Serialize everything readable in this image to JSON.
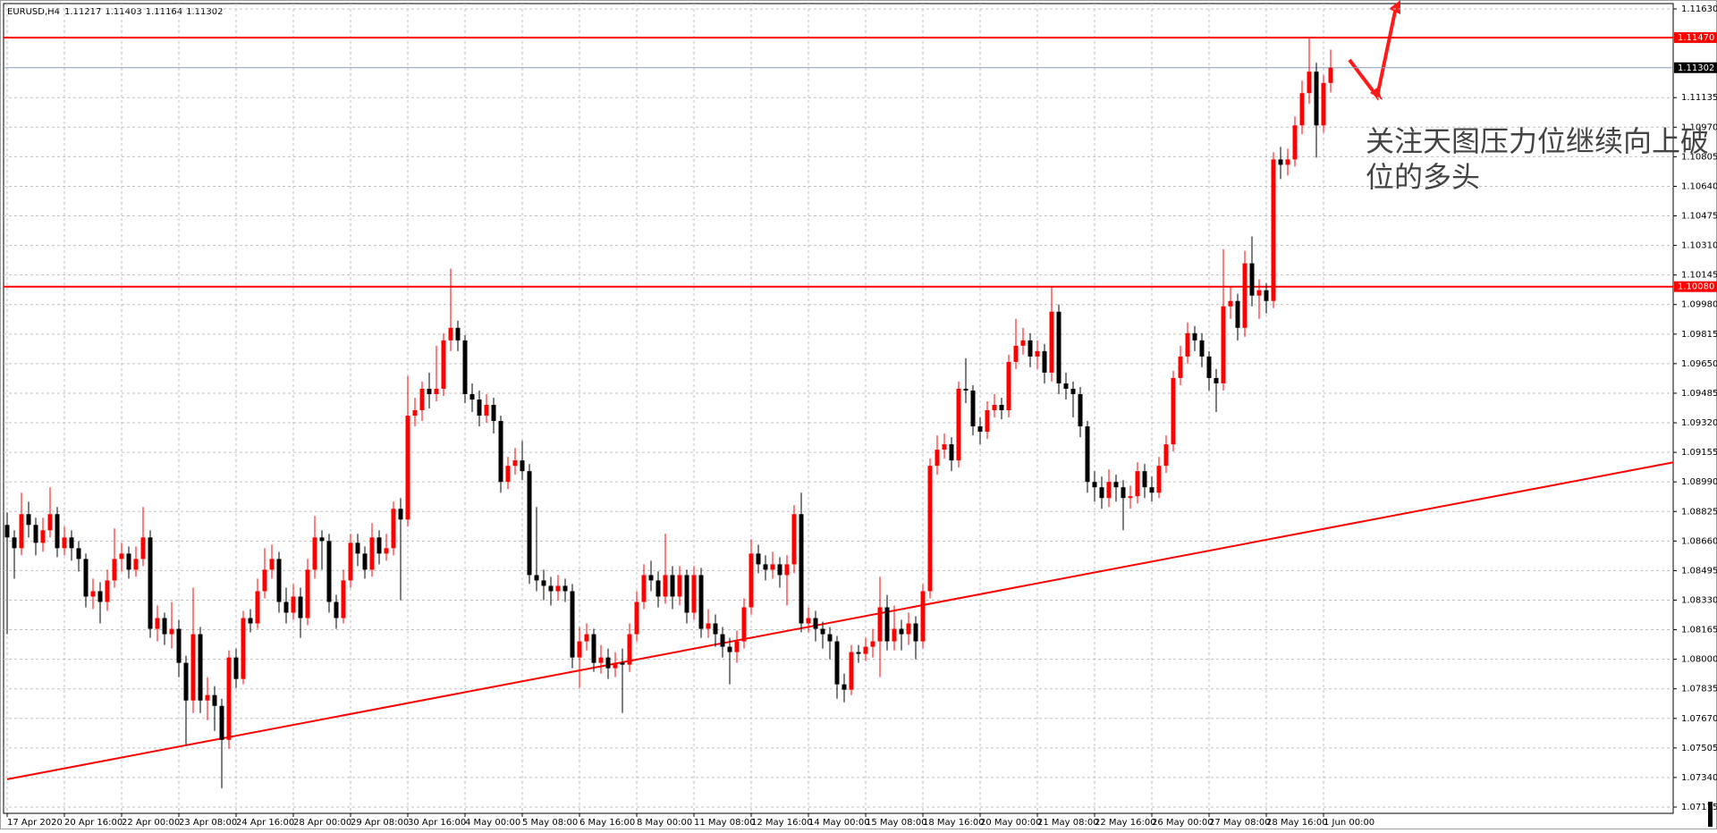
{
  "chart_data": {
    "type": "candlestick",
    "symbol": "EURUSD,H4",
    "annotation": "关注天图压力位继续向上破位的多头",
    "up_color": "#ff0000",
    "down_color": "#000000",
    "grid": true,
    "grid_color": "#c0c0c0",
    "ylim": [
      1.0714,
      1.1166
    ],
    "yticks": [
      {
        "value": 1.1163,
        "label": "1.11630"
      },
      {
        "value": 1.11135,
        "label": "1.11135"
      },
      {
        "value": 1.1097,
        "label": "1.10970"
      },
      {
        "value": 1.10805,
        "label": "1.10805"
      },
      {
        "value": 1.1064,
        "label": "1.10640"
      },
      {
        "value": 1.10475,
        "label": "1.10475"
      },
      {
        "value": 1.1031,
        "label": "1.10310"
      },
      {
        "value": 1.10145,
        "label": "1.10145"
      },
      {
        "value": 1.0998,
        "label": "1.09980"
      },
      {
        "value": 1.09815,
        "label": "1.09815"
      },
      {
        "value": 1.0965,
        "label": "1.09650"
      },
      {
        "value": 1.09485,
        "label": "1.09485"
      },
      {
        "value": 1.0932,
        "label": "1.09320"
      },
      {
        "value": 1.09155,
        "label": "1.09155"
      },
      {
        "value": 1.0899,
        "label": "1.08990"
      },
      {
        "value": 1.08825,
        "label": "1.08825"
      },
      {
        "value": 1.0866,
        "label": "1.08660"
      },
      {
        "value": 1.08495,
        "label": "1.08495"
      },
      {
        "value": 1.0833,
        "label": "1.08330"
      },
      {
        "value": 1.08165,
        "label": "1.08165"
      },
      {
        "value": 1.08,
        "label": "1.08000"
      },
      {
        "value": 1.07835,
        "label": "1.07835"
      },
      {
        "value": 1.0767,
        "label": "1.07670"
      },
      {
        "value": 1.07505,
        "label": "1.07505"
      },
      {
        "value": 1.0734,
        "label": "1.07340"
      },
      {
        "value": 1.07175,
        "label": "1.07175"
      }
    ],
    "levels": [
      {
        "value": 1.1147,
        "label": "1.11470"
      },
      {
        "value": 1.1008,
        "label": "1.10080"
      }
    ],
    "level_color": "#ff0000",
    "current_price_color": "#8a9bbd",
    "trendline": {
      "from": {
        "x": 0,
        "price": 1.0733
      },
      "to": {
        "x": 233,
        "price": 1.091
      },
      "color": "#ff0000"
    },
    "categories": [
      "17 Apr 2020",
      null,
      null,
      null,
      null,
      null,
      null,
      null,
      "20 Apr 16:00",
      null,
      null,
      null,
      null,
      null,
      null,
      null,
      "22 Apr 00:00",
      null,
      null,
      null,
      null,
      null,
      null,
      null,
      "23 Apr 08:00",
      null,
      null,
      null,
      null,
      null,
      null,
      null,
      "24 Apr 16:00",
      null,
      null,
      null,
      null,
      null,
      null,
      null,
      "28 Apr 00:00",
      null,
      null,
      null,
      null,
      null,
      null,
      null,
      "29 Apr 08:00",
      null,
      null,
      null,
      null,
      null,
      null,
      null,
      "30 Apr 16:00",
      null,
      null,
      null,
      null,
      null,
      null,
      null,
      "4 May 00:00",
      null,
      null,
      null,
      null,
      null,
      null,
      null,
      "5 May 08:00",
      null,
      null,
      null,
      null,
      null,
      null,
      null,
      "6 May 16:00",
      null,
      null,
      null,
      null,
      null,
      null,
      null,
      "8 May 00:00",
      null,
      null,
      null,
      null,
      null,
      null,
      null,
      "11 May 08:00",
      null,
      null,
      null,
      null,
      null,
      null,
      null,
      "12 May 16:00",
      null,
      null,
      null,
      null,
      null,
      null,
      null,
      "14 May 00:00",
      null,
      null,
      null,
      null,
      null,
      null,
      null,
      "15 May 08:00",
      null,
      null,
      null,
      null,
      null,
      null,
      null,
      "18 May 16:00",
      null,
      null,
      null,
      null,
      null,
      null,
      null,
      "20 May 00:00",
      null,
      null,
      null,
      null,
      null,
      null,
      null,
      "21 May 08:00",
      null,
      null,
      null,
      null,
      null,
      null,
      null,
      "22 May 16:00",
      null,
      null,
      null,
      null,
      null,
      null,
      null,
      "26 May 00:00",
      null,
      null,
      null,
      null,
      null,
      null,
      null,
      "27 May 08:00",
      null,
      null,
      null,
      null,
      null,
      null,
      null,
      "28 May 16:00",
      null,
      null,
      null,
      null,
      null,
      null,
      null,
      "1 Jun 00:00",
      null
    ],
    "ohlc": [
      [
        1.0875,
        1.0882,
        1.0814,
        1.0868
      ],
      [
        1.0868,
        1.0872,
        1.0845,
        1.0862
      ],
      [
        1.0862,
        1.0893,
        1.0858,
        1.0881
      ],
      [
        1.0881,
        1.0888,
        1.0868,
        1.0875
      ],
      [
        1.0875,
        1.0879,
        1.0858,
        1.0865
      ],
      [
        1.0865,
        1.0879,
        1.086,
        1.0872
      ],
      [
        1.0872,
        1.0896,
        1.0868,
        1.0881
      ],
      [
        1.0881,
        1.0885,
        1.0857,
        1.0862
      ],
      [
        1.0862,
        1.0874,
        1.0858,
        1.0868
      ],
      [
        1.0868,
        1.0872,
        1.0855,
        1.0862
      ],
      [
        1.0862,
        1.0866,
        1.0849,
        1.0856
      ],
      [
        1.0856,
        1.0859,
        1.0829,
        1.0835
      ],
      [
        1.0835,
        1.0845,
        1.0828,
        1.0838
      ],
      [
        1.0838,
        1.0843,
        1.082,
        1.0832
      ],
      [
        1.0832,
        1.085,
        1.0827,
        1.0844
      ],
      [
        1.0844,
        1.0873,
        1.084,
        1.0856
      ],
      [
        1.0856,
        1.0865,
        1.0849,
        1.0859
      ],
      [
        1.0859,
        1.0863,
        1.0845,
        1.085
      ],
      [
        1.085,
        1.0863,
        1.0846,
        1.0856
      ],
      [
        1.0856,
        1.0885,
        1.0852,
        1.0868
      ],
      [
        1.0868,
        1.0872,
        1.0812,
        1.0817
      ],
      [
        1.0817,
        1.083,
        1.081,
        1.0823
      ],
      [
        1.0823,
        1.0826,
        1.0808,
        1.0814
      ],
      [
        1.0814,
        1.0832,
        1.0806,
        1.0817
      ],
      [
        1.0817,
        1.0822,
        1.079,
        1.0798
      ],
      [
        1.0798,
        1.0802,
        1.0752,
        1.0777
      ],
      [
        1.0777,
        1.084,
        1.077,
        1.0814
      ],
      [
        1.0814,
        1.0818,
        1.077,
        1.0777
      ],
      [
        1.0777,
        1.079,
        1.0766,
        1.078
      ],
      [
        1.078,
        1.0785,
        1.076,
        1.0774
      ],
      [
        1.0774,
        1.0778,
        1.0728,
        1.0755
      ],
      [
        1.0755,
        1.0805,
        1.075,
        1.0801
      ],
      [
        1.0801,
        1.0806,
        1.0784,
        1.0789
      ],
      [
        1.0789,
        1.0827,
        1.0786,
        1.0823
      ],
      [
        1.0823,
        1.0828,
        1.0815,
        1.082
      ],
      [
        1.082,
        1.0845,
        1.0817,
        1.0838
      ],
      [
        1.0838,
        1.0862,
        1.0834,
        1.085
      ],
      [
        1.085,
        1.0864,
        1.0845,
        1.0856
      ],
      [
        1.0856,
        1.086,
        1.0826,
        1.0832
      ],
      [
        1.0832,
        1.084,
        1.082,
        1.0826
      ],
      [
        1.0826,
        1.0842,
        1.0822,
        1.0835
      ],
      [
        1.0835,
        1.084,
        1.0812,
        1.0823
      ],
      [
        1.0823,
        1.0856,
        1.0819,
        1.085
      ],
      [
        1.085,
        1.088,
        1.0845,
        1.0868
      ],
      [
        1.0868,
        1.0872,
        1.085,
        1.0866
      ],
      [
        1.0866,
        1.087,
        1.0826,
        1.0832
      ],
      [
        1.0832,
        1.0836,
        1.0817,
        1.0823
      ],
      [
        1.0823,
        1.085,
        1.082,
        1.0844
      ],
      [
        1.0844,
        1.087,
        1.084,
        1.0865
      ],
      [
        1.0865,
        1.087,
        1.0852,
        1.0859
      ],
      [
        1.0859,
        1.0863,
        1.0845,
        1.085
      ],
      [
        1.085,
        1.0876,
        1.0846,
        1.0868
      ],
      [
        1.0868,
        1.0872,
        1.0853,
        1.0859
      ],
      [
        1.0859,
        1.087,
        1.0855,
        1.0862
      ],
      [
        1.0862,
        1.0888,
        1.0858,
        1.0884
      ],
      [
        1.0884,
        1.089,
        1.0833,
        1.0878
      ],
      [
        1.0878,
        1.0958,
        1.0874,
        1.0936
      ],
      [
        1.0936,
        1.0946,
        1.093,
        1.0939
      ],
      [
        1.0939,
        1.0955,
        1.0933,
        1.0951
      ],
      [
        1.0951,
        1.096,
        1.094,
        1.0948
      ],
      [
        1.0948,
        1.0975,
        1.0944,
        1.0951
      ],
      [
        1.0951,
        1.0982,
        1.0947,
        1.0978
      ],
      [
        1.0978,
        1.1018,
        1.0972,
        1.0985
      ],
      [
        1.0985,
        1.0989,
        1.0972,
        1.0978
      ],
      [
        1.0978,
        1.0981,
        1.0943,
        1.0948
      ],
      [
        1.0948,
        1.0954,
        1.0938,
        1.0945
      ],
      [
        1.0945,
        1.095,
        1.093,
        1.0936
      ],
      [
        1.0936,
        1.0948,
        1.0932,
        1.0942
      ],
      [
        1.0942,
        1.0946,
        1.0926,
        1.0933
      ],
      [
        1.0933,
        1.0936,
        1.0893,
        1.0899
      ],
      [
        1.0899,
        1.0913,
        1.0895,
        1.0908
      ],
      [
        1.0908,
        1.0918,
        1.0903,
        1.0911
      ],
      [
        1.0911,
        1.0922,
        1.09,
        1.0905
      ],
      [
        1.0905,
        1.0909,
        1.0842,
        1.0847
      ],
      [
        1.0847,
        1.0885,
        1.0838,
        1.0844
      ],
      [
        1.0844,
        1.085,
        1.0833,
        1.0841
      ],
      [
        1.0841,
        1.0846,
        1.083,
        1.0838
      ],
      [
        1.0838,
        1.0847,
        1.0833,
        1.0841
      ],
      [
        1.0841,
        1.0845,
        1.0832,
        1.0838
      ],
      [
        1.0838,
        1.0842,
        1.0795,
        1.0801
      ],
      [
        1.0801,
        1.0818,
        1.0784,
        1.081
      ],
      [
        1.081,
        1.082,
        1.0805,
        1.0814
      ],
      [
        1.0814,
        1.0817,
        1.0793,
        1.0798
      ],
      [
        1.0798,
        1.0808,
        1.0792,
        1.0801
      ],
      [
        1.0801,
        1.0806,
        1.0789,
        1.0795
      ],
      [
        1.0795,
        1.0804,
        1.079,
        1.0798
      ],
      [
        1.0798,
        1.0806,
        1.077,
        1.0797
      ],
      [
        1.0797,
        1.082,
        1.0793,
        1.0814
      ],
      [
        1.0814,
        1.0838,
        1.081,
        1.0832
      ],
      [
        1.0832,
        1.0853,
        1.0828,
        1.0847
      ],
      [
        1.0847,
        1.0855,
        1.0838,
        1.0844
      ],
      [
        1.0844,
        1.0849,
        1.0829,
        1.0835
      ],
      [
        1.0835,
        1.087,
        1.0831,
        1.0847
      ],
      [
        1.0847,
        1.0852,
        1.0828,
        1.0835
      ],
      [
        1.0835,
        1.0852,
        1.083,
        1.0847
      ],
      [
        1.0847,
        1.085,
        1.082,
        1.0826
      ],
      [
        1.0826,
        1.0852,
        1.0822,
        1.0847
      ],
      [
        1.0847,
        1.0851,
        1.0812,
        1.0817
      ],
      [
        1.0817,
        1.0828,
        1.0812,
        1.082
      ],
      [
        1.082,
        1.0825,
        1.0807,
        1.0814
      ],
      [
        1.0814,
        1.0818,
        1.0801,
        1.0807
      ],
      [
        1.0807,
        1.0812,
        1.0786,
        1.0804
      ],
      [
        1.0804,
        1.0816,
        1.0798,
        1.081
      ],
      [
        1.081,
        1.0834,
        1.0806,
        1.0829
      ],
      [
        1.0829,
        1.0867,
        1.0825,
        1.0859
      ],
      [
        1.0859,
        1.0864,
        1.0848,
        1.0853
      ],
      [
        1.0853,
        1.0858,
        1.0844,
        1.085
      ],
      [
        1.085,
        1.086,
        1.0845,
        1.0853
      ],
      [
        1.0853,
        1.0857,
        1.084,
        1.0847
      ],
      [
        1.0847,
        1.0858,
        1.083,
        1.0853
      ],
      [
        1.0853,
        1.0886,
        1.0848,
        1.0881
      ],
      [
        1.0881,
        1.0893,
        1.0815,
        1.082
      ],
      [
        1.082,
        1.0829,
        1.0815,
        1.0823
      ],
      [
        1.0823,
        1.0827,
        1.081,
        1.0817
      ],
      [
        1.0817,
        1.0821,
        1.0806,
        1.0814
      ],
      [
        1.0814,
        1.0818,
        1.08,
        1.081
      ],
      [
        1.081,
        1.0813,
        1.0778,
        1.0786
      ],
      [
        1.0786,
        1.0792,
        1.0776,
        1.0783
      ],
      [
        1.0783,
        1.0808,
        1.078,
        1.0804
      ],
      [
        1.0804,
        1.0808,
        1.0798,
        1.0803
      ],
      [
        1.0803,
        1.0812,
        1.0799,
        1.0807
      ],
      [
        1.0807,
        1.0817,
        1.0801,
        1.081
      ],
      [
        1.081,
        1.0846,
        1.079,
        1.0829
      ],
      [
        1.0829,
        1.0836,
        1.0805,
        1.081
      ],
      [
        1.081,
        1.083,
        1.0805,
        1.0817
      ],
      [
        1.0817,
        1.0822,
        1.0805,
        1.0814
      ],
      [
        1.0814,
        1.0826,
        1.0808,
        1.082
      ],
      [
        1.082,
        1.0824,
        1.08,
        1.081
      ],
      [
        1.081,
        1.0842,
        1.0806,
        1.0838
      ],
      [
        1.0838,
        1.0912,
        1.0834,
        1.0908
      ],
      [
        1.0908,
        1.0925,
        1.0903,
        1.0917
      ],
      [
        1.0917,
        1.0926,
        1.0912,
        1.092
      ],
      [
        1.092,
        1.0924,
        1.0905,
        1.0911
      ],
      [
        1.0911,
        1.0955,
        1.0907,
        1.0951
      ],
      [
        1.0951,
        1.0968,
        1.0943,
        1.095
      ],
      [
        1.095,
        1.0953,
        1.0925,
        1.093
      ],
      [
        1.093,
        1.0935,
        1.092,
        1.0927
      ],
      [
        1.0927,
        1.0944,
        1.0923,
        1.0939
      ],
      [
        1.0939,
        1.0948,
        1.0935,
        1.0942
      ],
      [
        1.0942,
        1.0946,
        1.0934,
        1.0939
      ],
      [
        1.0939,
        1.097,
        1.0935,
        1.0966
      ],
      [
        1.0966,
        1.099,
        1.0962,
        1.0975
      ],
      [
        1.0975,
        1.0985,
        1.097,
        1.0978
      ],
      [
        1.0978,
        1.0982,
        1.0963,
        1.0969
      ],
      [
        1.0969,
        1.0978,
        1.0962,
        1.0972
      ],
      [
        1.0972,
        1.0976,
        1.0954,
        1.096
      ],
      [
        1.096,
        1.1008,
        1.0955,
        1.0994
      ],
      [
        1.0994,
        1.0998,
        1.0948,
        1.0954
      ],
      [
        1.0954,
        1.096,
        1.0945,
        1.0951
      ],
      [
        1.0951,
        1.0955,
        1.0935,
        1.0948
      ],
      [
        1.0948,
        1.0952,
        1.0924,
        1.093
      ],
      [
        1.093,
        1.0933,
        1.0893,
        1.0899
      ],
      [
        1.0899,
        1.0905,
        1.0888,
        1.0896
      ],
      [
        1.0896,
        1.0902,
        1.0884,
        1.089
      ],
      [
        1.089,
        1.0906,
        1.0885,
        1.0899
      ],
      [
        1.0899,
        1.0903,
        1.0888,
        1.0896
      ],
      [
        1.0896,
        1.09,
        1.0872,
        1.089
      ],
      [
        1.089,
        1.0897,
        1.0884,
        1.0891
      ],
      [
        1.0891,
        1.091,
        1.0887,
        1.0905
      ],
      [
        1.0905,
        1.0909,
        1.089,
        1.0896
      ],
      [
        1.0896,
        1.0902,
        1.0888,
        1.0893
      ],
      [
        1.0893,
        1.0913,
        1.089,
        1.0908
      ],
      [
        1.0908,
        1.0925,
        1.0904,
        1.092
      ],
      [
        1.092,
        1.0961,
        1.0916,
        1.0957
      ],
      [
        1.0957,
        1.0975,
        1.0953,
        1.0969
      ],
      [
        1.0969,
        1.0988,
        1.0965,
        1.0982
      ],
      [
        1.0982,
        1.0986,
        1.0972,
        1.0978
      ],
      [
        1.0978,
        1.0982,
        1.0963,
        1.0969
      ],
      [
        1.0969,
        1.0972,
        1.095,
        1.0957
      ],
      [
        1.0957,
        1.0962,
        1.0938,
        1.0954
      ],
      [
        1.0954,
        1.1029,
        1.095,
        1.0997
      ],
      [
        1.0997,
        1.1008,
        1.099,
        1.1
      ],
      [
        1.1,
        1.1004,
        1.0978,
        1.0985
      ],
      [
        1.0985,
        1.1028,
        1.098,
        1.1021
      ],
      [
        1.1021,
        1.1036,
        1.0997,
        1.1003
      ],
      [
        1.1003,
        1.1012,
        1.099,
        1.1006
      ],
      [
        1.1006,
        1.101,
        1.0993,
        1.1
      ],
      [
        1.1,
        1.1083,
        1.0996,
        1.1079
      ],
      [
        1.1079,
        1.1086,
        1.1068,
        1.1076
      ],
      [
        1.1076,
        1.1085,
        1.107,
        1.1079
      ],
      [
        1.1079,
        1.1103,
        1.1075,
        1.1098
      ],
      [
        1.1098,
        1.1123,
        1.1093,
        1.1116
      ],
      [
        1.1116,
        1.1147,
        1.111,
        1.1128
      ],
      [
        1.1128,
        1.1133,
        1.108,
        1.1098
      ],
      [
        1.1098,
        1.1126,
        1.1094,
        1.11217
      ],
      [
        1.11217,
        1.11403,
        1.11164,
        1.11302
      ]
    ]
  }
}
